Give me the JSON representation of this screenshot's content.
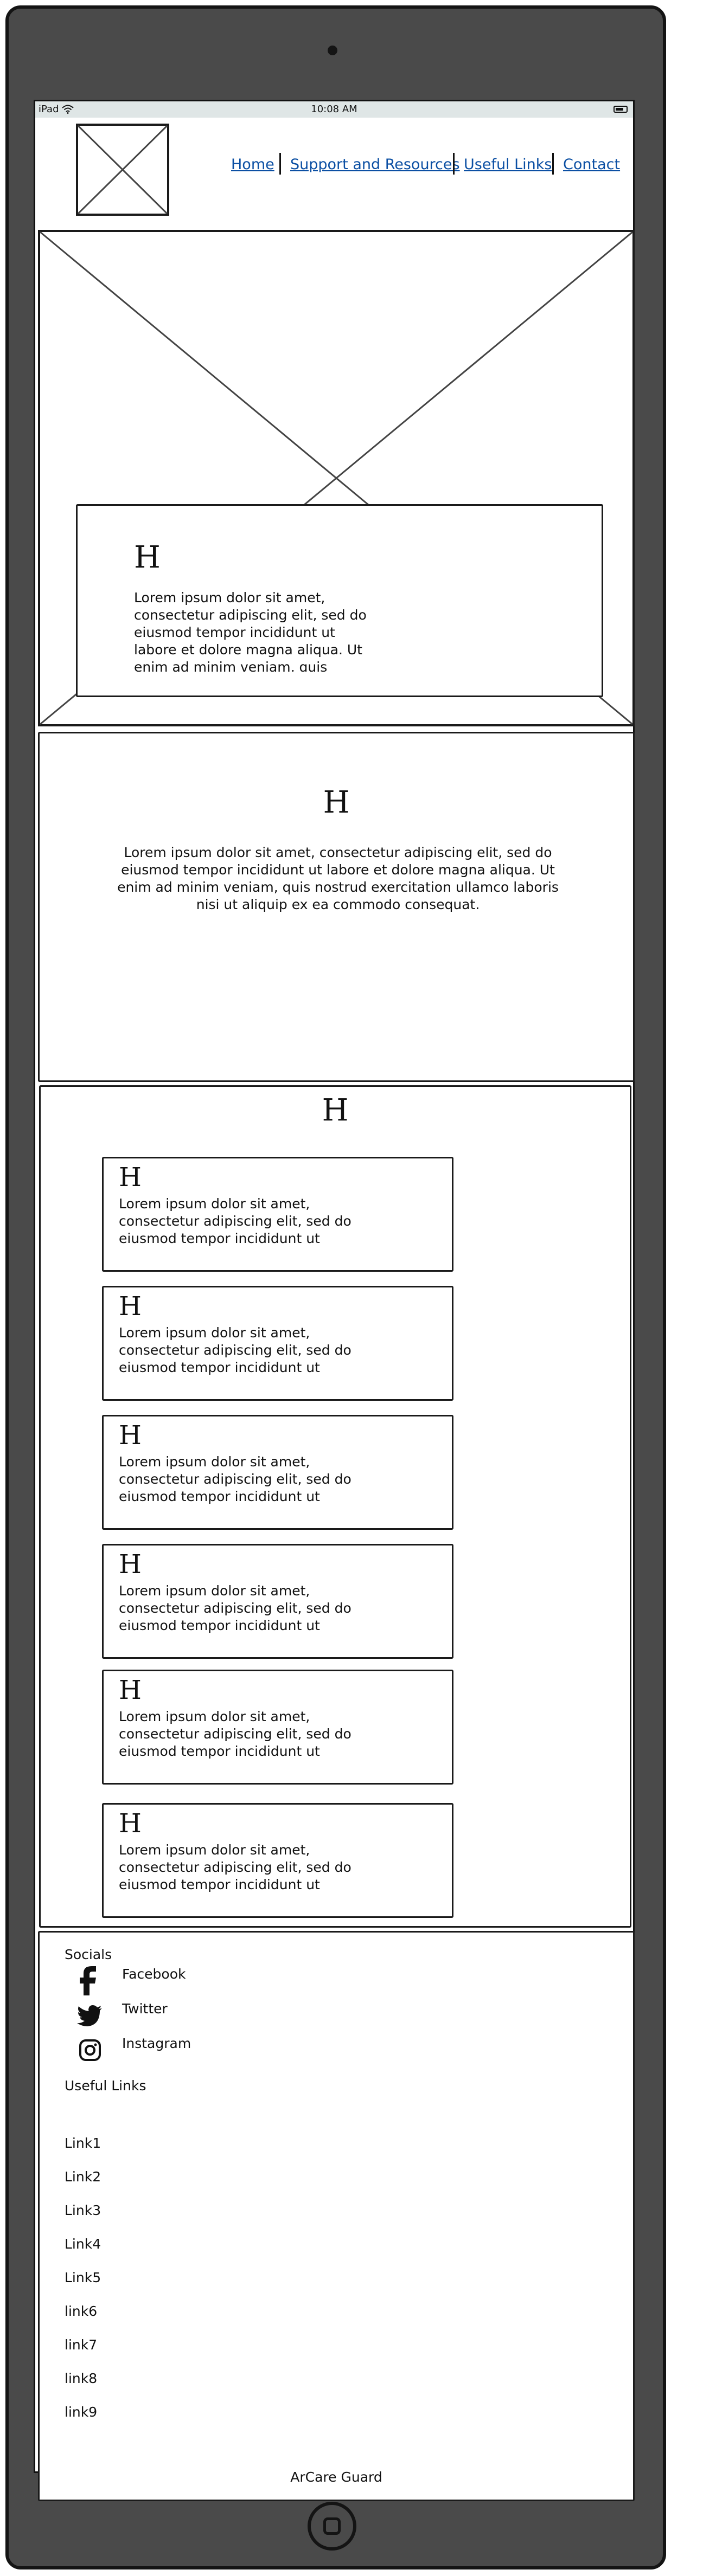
{
  "status_bar": {
    "carrier": "iPad",
    "time": "10:08 AM"
  },
  "header": {
    "nav": [
      "Home",
      "Support and Resources",
      "Useful Links",
      "Contact"
    ]
  },
  "hero": {
    "heading": "H",
    "text": "Lorem ipsum dolor sit amet, consectetur adipiscing elit, sed do eiusmod tempor incididunt ut labore et dolore magna aliqua. Ut enim ad minim veniam, quis"
  },
  "intro": {
    "heading": "H",
    "text": "Lorem ipsum dolor sit amet, consectetur adipiscing elit, sed do eiusmod tempor incididunt ut labore et dolore magna aliqua. Ut enim ad minim veniam, quis nostrud exercitation ullamco laboris nisi ut aliquip ex ea commodo consequat."
  },
  "cards_section": {
    "heading": "H",
    "cards": [
      {
        "heading": "H",
        "text": "Lorem ipsum dolor sit amet, consectetur adipiscing elit, sed do eiusmod tempor incididunt ut"
      },
      {
        "heading": "H",
        "text": "Lorem ipsum dolor sit amet, consectetur adipiscing elit, sed do eiusmod tempor incididunt ut"
      },
      {
        "heading": "H",
        "text": "Lorem ipsum dolor sit amet, consectetur adipiscing elit, sed do eiusmod tempor incididunt ut"
      },
      {
        "heading": "H",
        "text": "Lorem ipsum dolor sit amet, consectetur adipiscing elit, sed do eiusmod tempor incididunt ut"
      },
      {
        "heading": "H",
        "text": "Lorem ipsum dolor sit amet, consectetur adipiscing elit, sed do eiusmod tempor incididunt ut"
      },
      {
        "heading": "H",
        "text": "Lorem ipsum dolor sit amet, consectetur adipiscing elit, sed do eiusmod tempor incididunt ut"
      }
    ]
  },
  "footer": {
    "socials_title": "Socials",
    "socials": [
      {
        "label": "Facebook",
        "icon": "facebook-icon"
      },
      {
        "label": "Twitter",
        "icon": "twitter-icon"
      },
      {
        "label": "Instagram",
        "icon": "instagram-icon"
      }
    ],
    "links_title": "Useful Links",
    "links": [
      "Link1",
      "Link2",
      "Link3",
      "Link4",
      "Link5",
      "link6",
      "link7",
      "link8",
      "link9"
    ],
    "brand": "ArCare Guard"
  },
  "colors": {
    "link": "#0b4fa3",
    "device": "#4a4a4a",
    "statusbar": "#dfe6e6"
  }
}
